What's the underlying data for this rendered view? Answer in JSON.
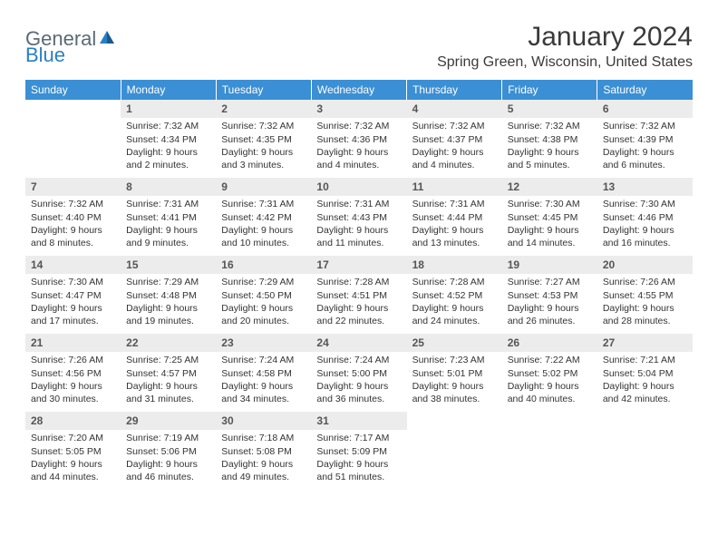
{
  "logo": {
    "general": "General",
    "blue": "Blue"
  },
  "header": {
    "title": "January 2024",
    "location": "Spring Green, Wisconsin, United States"
  },
  "colors": {
    "header_bg": "#3b8fd4",
    "header_text": "#ffffff",
    "daynum_bg": "#ececec",
    "daynum_text": "#555555",
    "body_text": "#333333",
    "logo_general": "#5a6a74",
    "logo_blue": "#2a7fc4"
  },
  "weekdays": [
    "Sunday",
    "Monday",
    "Tuesday",
    "Wednesday",
    "Thursday",
    "Friday",
    "Saturday"
  ],
  "weeks": [
    [
      {
        "empty": true
      },
      {
        "num": "1",
        "sunrise": "Sunrise: 7:32 AM",
        "sunset": "Sunset: 4:34 PM",
        "daylight": "Daylight: 9 hours and 2 minutes."
      },
      {
        "num": "2",
        "sunrise": "Sunrise: 7:32 AM",
        "sunset": "Sunset: 4:35 PM",
        "daylight": "Daylight: 9 hours and 3 minutes."
      },
      {
        "num": "3",
        "sunrise": "Sunrise: 7:32 AM",
        "sunset": "Sunset: 4:36 PM",
        "daylight": "Daylight: 9 hours and 4 minutes."
      },
      {
        "num": "4",
        "sunrise": "Sunrise: 7:32 AM",
        "sunset": "Sunset: 4:37 PM",
        "daylight": "Daylight: 9 hours and 4 minutes."
      },
      {
        "num": "5",
        "sunrise": "Sunrise: 7:32 AM",
        "sunset": "Sunset: 4:38 PM",
        "daylight": "Daylight: 9 hours and 5 minutes."
      },
      {
        "num": "6",
        "sunrise": "Sunrise: 7:32 AM",
        "sunset": "Sunset: 4:39 PM",
        "daylight": "Daylight: 9 hours and 6 minutes."
      }
    ],
    [
      {
        "num": "7",
        "sunrise": "Sunrise: 7:32 AM",
        "sunset": "Sunset: 4:40 PM",
        "daylight": "Daylight: 9 hours and 8 minutes."
      },
      {
        "num": "8",
        "sunrise": "Sunrise: 7:31 AM",
        "sunset": "Sunset: 4:41 PM",
        "daylight": "Daylight: 9 hours and 9 minutes."
      },
      {
        "num": "9",
        "sunrise": "Sunrise: 7:31 AM",
        "sunset": "Sunset: 4:42 PM",
        "daylight": "Daylight: 9 hours and 10 minutes."
      },
      {
        "num": "10",
        "sunrise": "Sunrise: 7:31 AM",
        "sunset": "Sunset: 4:43 PM",
        "daylight": "Daylight: 9 hours and 11 minutes."
      },
      {
        "num": "11",
        "sunrise": "Sunrise: 7:31 AM",
        "sunset": "Sunset: 4:44 PM",
        "daylight": "Daylight: 9 hours and 13 minutes."
      },
      {
        "num": "12",
        "sunrise": "Sunrise: 7:30 AM",
        "sunset": "Sunset: 4:45 PM",
        "daylight": "Daylight: 9 hours and 14 minutes."
      },
      {
        "num": "13",
        "sunrise": "Sunrise: 7:30 AM",
        "sunset": "Sunset: 4:46 PM",
        "daylight": "Daylight: 9 hours and 16 minutes."
      }
    ],
    [
      {
        "num": "14",
        "sunrise": "Sunrise: 7:30 AM",
        "sunset": "Sunset: 4:47 PM",
        "daylight": "Daylight: 9 hours and 17 minutes."
      },
      {
        "num": "15",
        "sunrise": "Sunrise: 7:29 AM",
        "sunset": "Sunset: 4:48 PM",
        "daylight": "Daylight: 9 hours and 19 minutes."
      },
      {
        "num": "16",
        "sunrise": "Sunrise: 7:29 AM",
        "sunset": "Sunset: 4:50 PM",
        "daylight": "Daylight: 9 hours and 20 minutes."
      },
      {
        "num": "17",
        "sunrise": "Sunrise: 7:28 AM",
        "sunset": "Sunset: 4:51 PM",
        "daylight": "Daylight: 9 hours and 22 minutes."
      },
      {
        "num": "18",
        "sunrise": "Sunrise: 7:28 AM",
        "sunset": "Sunset: 4:52 PM",
        "daylight": "Daylight: 9 hours and 24 minutes."
      },
      {
        "num": "19",
        "sunrise": "Sunrise: 7:27 AM",
        "sunset": "Sunset: 4:53 PM",
        "daylight": "Daylight: 9 hours and 26 minutes."
      },
      {
        "num": "20",
        "sunrise": "Sunrise: 7:26 AM",
        "sunset": "Sunset: 4:55 PM",
        "daylight": "Daylight: 9 hours and 28 minutes."
      }
    ],
    [
      {
        "num": "21",
        "sunrise": "Sunrise: 7:26 AM",
        "sunset": "Sunset: 4:56 PM",
        "daylight": "Daylight: 9 hours and 30 minutes."
      },
      {
        "num": "22",
        "sunrise": "Sunrise: 7:25 AM",
        "sunset": "Sunset: 4:57 PM",
        "daylight": "Daylight: 9 hours and 31 minutes."
      },
      {
        "num": "23",
        "sunrise": "Sunrise: 7:24 AM",
        "sunset": "Sunset: 4:58 PM",
        "daylight": "Daylight: 9 hours and 34 minutes."
      },
      {
        "num": "24",
        "sunrise": "Sunrise: 7:24 AM",
        "sunset": "Sunset: 5:00 PM",
        "daylight": "Daylight: 9 hours and 36 minutes."
      },
      {
        "num": "25",
        "sunrise": "Sunrise: 7:23 AM",
        "sunset": "Sunset: 5:01 PM",
        "daylight": "Daylight: 9 hours and 38 minutes."
      },
      {
        "num": "26",
        "sunrise": "Sunrise: 7:22 AM",
        "sunset": "Sunset: 5:02 PM",
        "daylight": "Daylight: 9 hours and 40 minutes."
      },
      {
        "num": "27",
        "sunrise": "Sunrise: 7:21 AM",
        "sunset": "Sunset: 5:04 PM",
        "daylight": "Daylight: 9 hours and 42 minutes."
      }
    ],
    [
      {
        "num": "28",
        "sunrise": "Sunrise: 7:20 AM",
        "sunset": "Sunset: 5:05 PM",
        "daylight": "Daylight: 9 hours and 44 minutes."
      },
      {
        "num": "29",
        "sunrise": "Sunrise: 7:19 AM",
        "sunset": "Sunset: 5:06 PM",
        "daylight": "Daylight: 9 hours and 46 minutes."
      },
      {
        "num": "30",
        "sunrise": "Sunrise: 7:18 AM",
        "sunset": "Sunset: 5:08 PM",
        "daylight": "Daylight: 9 hours and 49 minutes."
      },
      {
        "num": "31",
        "sunrise": "Sunrise: 7:17 AM",
        "sunset": "Sunset: 5:09 PM",
        "daylight": "Daylight: 9 hours and 51 minutes."
      },
      {
        "empty": true
      },
      {
        "empty": true
      },
      {
        "empty": true
      }
    ]
  ]
}
